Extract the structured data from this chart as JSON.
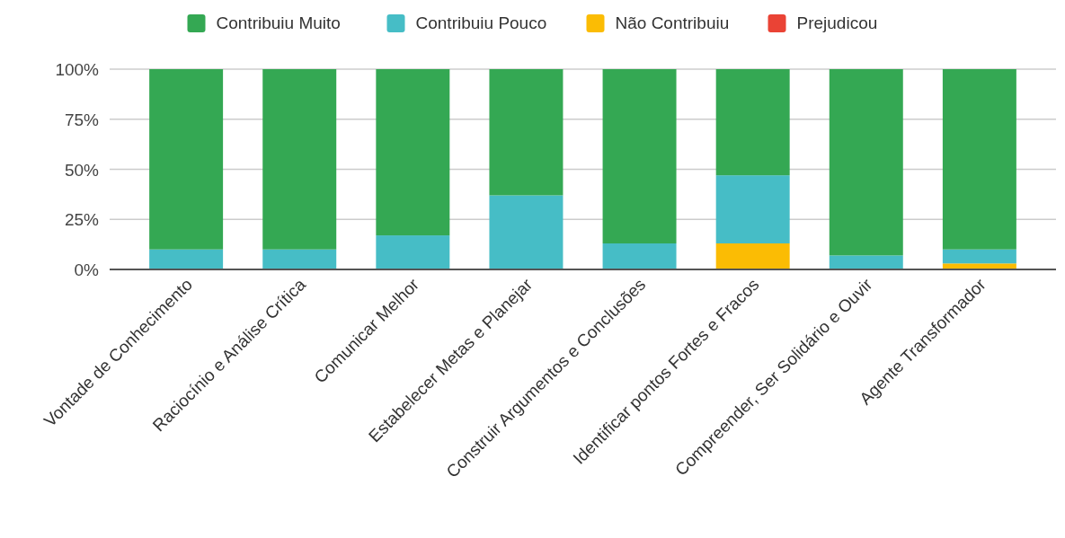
{
  "chart_data": {
    "type": "bar",
    "stacked": true,
    "categories": [
      "Vontade de Conhecimento",
      "Raciocínio e Análise Crítica",
      "Comunicar Melhor",
      "Estabelecer Metas e Planejar",
      "Construir Argumentos e Conclusões",
      "Identificar pontos Fortes e Fracos",
      "Compreender, Ser Solidário e Ouvir",
      "Agente Transformador"
    ],
    "series": [
      {
        "name": "Prejudicou",
        "color": "#ea4335",
        "values": [
          0,
          0,
          0,
          0,
          0,
          0,
          0,
          0
        ]
      },
      {
        "name": "Não Contribuiu",
        "color": "#fbbc04",
        "values": [
          0,
          0,
          0,
          0,
          0,
          13,
          0,
          3
        ]
      },
      {
        "name": "Contribuiu Pouco",
        "color": "#46bdc6",
        "values": [
          10,
          10,
          17,
          37,
          13,
          34,
          7,
          7
        ]
      },
      {
        "name": "Contribuiu Muito",
        "color": "#34a853",
        "values": [
          90,
          90,
          83,
          63,
          87,
          53,
          93,
          90
        ]
      }
    ],
    "ylim": [
      0,
      100
    ],
    "yticks": [
      {
        "value": 0,
        "label": "0%"
      },
      {
        "value": 25,
        "label": "25%"
      },
      {
        "value": 50,
        "label": "50%"
      },
      {
        "value": 75,
        "label": "75%"
      },
      {
        "value": 100,
        "label": "100%"
      }
    ],
    "grid": "y",
    "legend": "top"
  }
}
